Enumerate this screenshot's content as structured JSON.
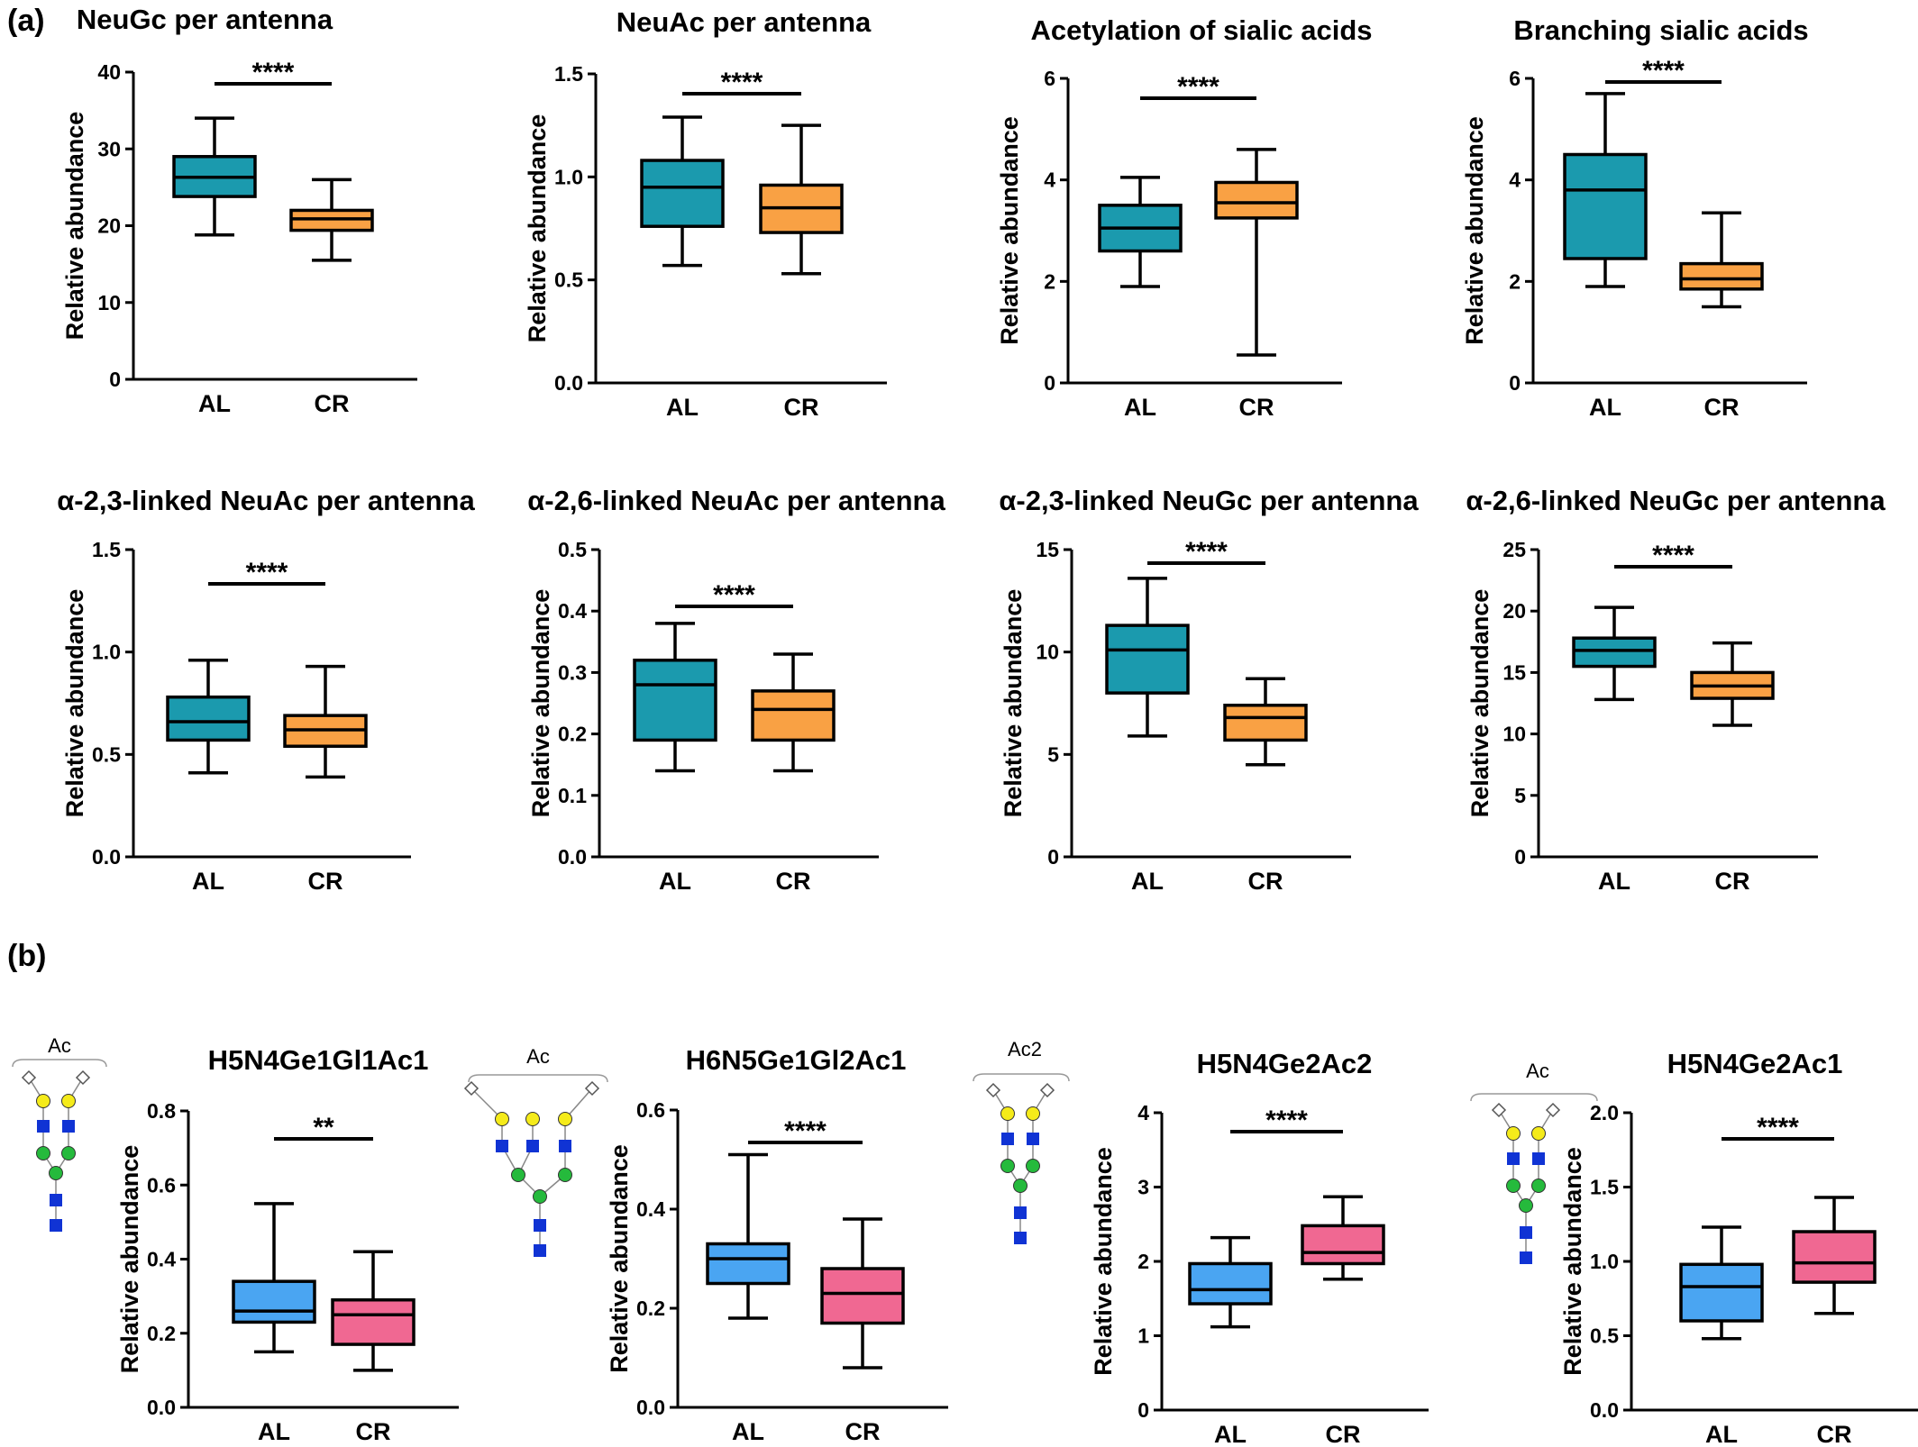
{
  "figure": {
    "panel_labels": [
      "(a)",
      "(b)"
    ],
    "ylabel": "Relative abundance",
    "colors": {
      "AL_a": "#1B9AAE",
      "CR_a": "#F9A144",
      "AL_b": "#4AA5F2",
      "CR_b": "#F06892",
      "gal": "#F5EB1A",
      "man": "#25BA3C",
      "glcnac": "#1033D4",
      "sia": "#FFFFFF"
    }
  },
  "chart_data": [
    {
      "type": "box",
      "title": "NeuGc per antenna",
      "ylabel": "Relative abundance",
      "ylim": [
        0,
        40
      ],
      "yticks": [
        0,
        10,
        20,
        30,
        40
      ],
      "ytick_labels": [
        "0",
        "10",
        "20",
        "30",
        "40"
      ],
      "categories": [
        "AL",
        "CR"
      ],
      "significance": "****",
      "palette": "a",
      "series": [
        {
          "min": 18.8,
          "q1": 23.8,
          "median": 26.3,
          "q3": 29.0,
          "max": 34.0
        },
        {
          "min": 15.5,
          "q1": 19.4,
          "median": 20.9,
          "q3": 22.0,
          "max": 26.0
        }
      ]
    },
    {
      "type": "box",
      "title": "NeuAc per antenna",
      "ylabel": "Relative abundance",
      "ylim": [
        0,
        1.5
      ],
      "yticks": [
        0,
        0.5,
        1.0,
        1.5
      ],
      "ytick_labels": [
        "0.0",
        "0.5",
        "1.0",
        "1.5"
      ],
      "categories": [
        "AL",
        "CR"
      ],
      "significance": "****",
      "palette": "a",
      "series": [
        {
          "min": 0.57,
          "q1": 0.76,
          "median": 0.95,
          "q3": 1.08,
          "max": 1.29
        },
        {
          "min": 0.53,
          "q1": 0.73,
          "median": 0.85,
          "q3": 0.96,
          "max": 1.25
        }
      ]
    },
    {
      "type": "box",
      "title": "Acetylation of sialic acids",
      "ylabel": "Relative abundance",
      "ylim": [
        0,
        6
      ],
      "yticks": [
        0,
        2,
        4,
        6
      ],
      "ytick_labels": [
        "0",
        "2",
        "4",
        "6"
      ],
      "categories": [
        "AL",
        "CR"
      ],
      "significance": "****",
      "palette": "a",
      "series": [
        {
          "min": 1.9,
          "q1": 2.6,
          "median": 3.05,
          "q3": 3.5,
          "max": 4.05
        },
        {
          "min": 0.55,
          "q1": 3.25,
          "median": 3.55,
          "q3": 3.95,
          "max": 4.6
        }
      ]
    },
    {
      "type": "box",
      "title": "Branching sialic acids",
      "ylabel": "Relative abundance",
      "ylim": [
        0,
        6
      ],
      "yticks": [
        0,
        2,
        4,
        6
      ],
      "ytick_labels": [
        "0",
        "2",
        "4",
        "6"
      ],
      "categories": [
        "AL",
        "CR"
      ],
      "significance": "****",
      "palette": "a",
      "series": [
        {
          "min": 1.9,
          "q1": 2.45,
          "median": 3.8,
          "q3": 4.5,
          "max": 5.7
        },
        {
          "min": 1.5,
          "q1": 1.85,
          "median": 2.05,
          "q3": 2.35,
          "max": 3.35
        }
      ]
    },
    {
      "type": "box",
      "title": "α-2,3-linked NeuAc per antenna",
      "ylabel": "Relative abundance",
      "ylim": [
        0,
        1.5
      ],
      "yticks": [
        0,
        0.5,
        1.0,
        1.5
      ],
      "ytick_labels": [
        "0.0",
        "0.5",
        "1.0",
        "1.5"
      ],
      "categories": [
        "AL",
        "CR"
      ],
      "significance": "****",
      "palette": "a",
      "series": [
        {
          "min": 0.41,
          "q1": 0.57,
          "median": 0.66,
          "q3": 0.78,
          "max": 0.96
        },
        {
          "min": 0.39,
          "q1": 0.54,
          "median": 0.62,
          "q3": 0.69,
          "max": 0.93
        }
      ]
    },
    {
      "type": "box",
      "title": "α-2,6-linked NeuAc per antenna",
      "ylabel": "Relative abundance",
      "ylim": [
        0,
        0.5
      ],
      "yticks": [
        0,
        0.1,
        0.2,
        0.3,
        0.4,
        0.5
      ],
      "ytick_labels": [
        "0.0",
        "0.1",
        "0.2",
        "0.3",
        "0.4",
        "0.5"
      ],
      "categories": [
        "AL",
        "CR"
      ],
      "significance": "****",
      "palette": "a",
      "series": [
        {
          "min": 0.14,
          "q1": 0.19,
          "median": 0.28,
          "q3": 0.32,
          "max": 0.38
        },
        {
          "min": 0.14,
          "q1": 0.19,
          "median": 0.24,
          "q3": 0.27,
          "max": 0.33
        }
      ]
    },
    {
      "type": "box",
      "title": "α-2,3-linked NeuGc per antenna",
      "ylabel": "Relative abundance",
      "ylim": [
        0,
        15
      ],
      "yticks": [
        0,
        5,
        10,
        15
      ],
      "ytick_labels": [
        "0",
        "5",
        "10",
        "15"
      ],
      "categories": [
        "AL",
        "CR"
      ],
      "significance": "****",
      "palette": "a",
      "series": [
        {
          "min": 5.9,
          "q1": 8.0,
          "median": 10.1,
          "q3": 11.3,
          "max": 13.6
        },
        {
          "min": 4.5,
          "q1": 5.7,
          "median": 6.8,
          "q3": 7.4,
          "max": 8.7
        }
      ]
    },
    {
      "type": "box",
      "title": "α-2,6-linked NeuGc per antenna",
      "ylabel": "Relative abundance",
      "ylim": [
        0,
        25
      ],
      "yticks": [
        0,
        5,
        10,
        15,
        20,
        25
      ],
      "ytick_labels": [
        "0",
        "5",
        "10",
        "15",
        "20",
        "25"
      ],
      "categories": [
        "AL",
        "CR"
      ],
      "significance": "****",
      "palette": "a",
      "series": [
        {
          "min": 12.8,
          "q1": 15.5,
          "median": 16.8,
          "q3": 17.8,
          "max": 20.3
        },
        {
          "min": 10.7,
          "q1": 12.9,
          "median": 13.9,
          "q3": 15.0,
          "max": 17.4
        }
      ]
    },
    {
      "type": "box",
      "title": "H5N4Ge1Gl1Ac1",
      "ylabel": "Relative abundance",
      "ylim": [
        0,
        0.8
      ],
      "yticks": [
        0,
        0.2,
        0.4,
        0.6,
        0.8
      ],
      "ytick_labels": [
        "0.0",
        "0.2",
        "0.4",
        "0.6",
        "0.8"
      ],
      "categories": [
        "AL",
        "CR"
      ],
      "significance": "**",
      "palette": "b",
      "series": [
        {
          "min": 0.15,
          "q1": 0.23,
          "median": 0.26,
          "q3": 0.34,
          "max": 0.55
        },
        {
          "min": 0.1,
          "q1": 0.17,
          "median": 0.25,
          "q3": 0.29,
          "max": 0.42
        }
      ]
    },
    {
      "type": "box",
      "title": "H6N5Ge1Gl2Ac1",
      "ylabel": "Relative abundance",
      "ylim": [
        0,
        0.6
      ],
      "yticks": [
        0,
        0.2,
        0.4,
        0.6
      ],
      "ytick_labels": [
        "0.0",
        "0.2",
        "0.4",
        "0.6"
      ],
      "categories": [
        "AL",
        "CR"
      ],
      "significance": "****",
      "palette": "b",
      "series": [
        {
          "min": 0.18,
          "q1": 0.25,
          "median": 0.3,
          "q3": 0.33,
          "max": 0.51
        },
        {
          "min": 0.08,
          "q1": 0.17,
          "median": 0.23,
          "q3": 0.28,
          "max": 0.38
        }
      ]
    },
    {
      "type": "box",
      "title": "H5N4Ge2Ac2",
      "ylabel": "Relative abundance",
      "ylim": [
        0,
        4
      ],
      "yticks": [
        0,
        1,
        2,
        3,
        4
      ],
      "ytick_labels": [
        "0",
        "1",
        "2",
        "3",
        "4"
      ],
      "categories": [
        "AL",
        "CR"
      ],
      "significance": "****",
      "palette": "b",
      "series": [
        {
          "min": 1.12,
          "q1": 1.43,
          "median": 1.62,
          "q3": 1.97,
          "max": 2.32
        },
        {
          "min": 1.76,
          "q1": 1.97,
          "median": 2.12,
          "q3": 2.48,
          "max": 2.87
        }
      ]
    },
    {
      "type": "box",
      "title": "H5N4Ge2Ac1",
      "ylabel": "Relative abundance",
      "ylim": [
        0,
        2.0
      ],
      "yticks": [
        0,
        0.5,
        1.0,
        1.5,
        2.0
      ],
      "ytick_labels": [
        "0.0",
        "0.5",
        "1.0",
        "1.5",
        "2.0"
      ],
      "categories": [
        "AL",
        "CR"
      ],
      "significance": "****",
      "palette": "b",
      "series": [
        {
          "min": 0.48,
          "q1": 0.6,
          "median": 0.83,
          "q3": 0.98,
          "max": 1.23
        },
        {
          "min": 0.65,
          "q1": 0.86,
          "median": 0.99,
          "q3": 1.2,
          "max": 1.43
        }
      ]
    }
  ],
  "glycans": [
    {
      "label": "Ac"
    },
    {
      "label": "Ac"
    },
    {
      "label": "Ac2"
    },
    {
      "label": "Ac"
    }
  ]
}
